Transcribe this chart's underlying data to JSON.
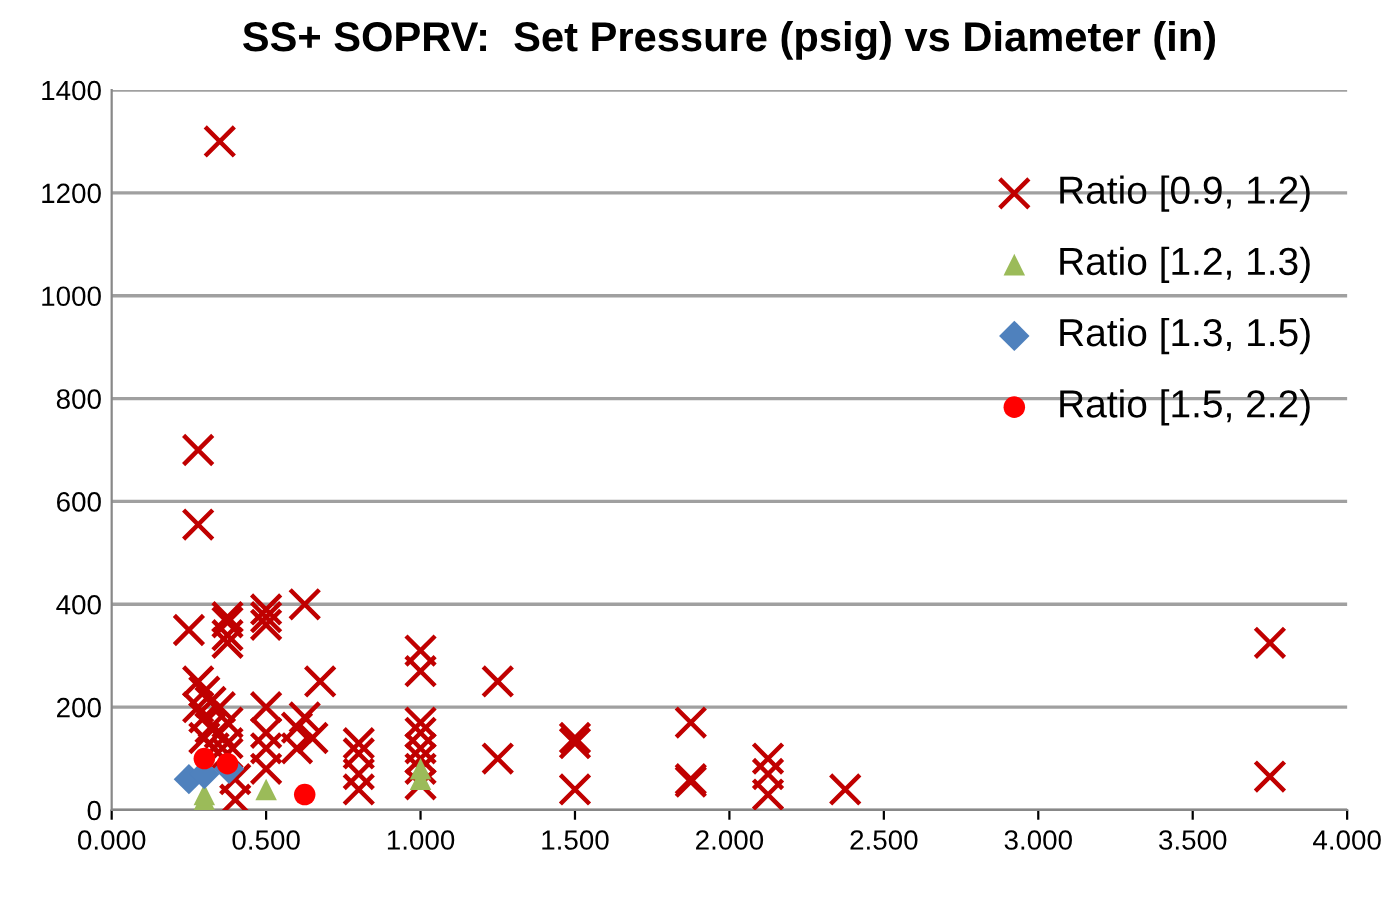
{
  "chart_data": {
    "type": "scatter",
    "title": "SS+ SOPRV:  Set Pressure (psig) vs Diameter (in)",
    "xlim": [
      0,
      4
    ],
    "xticks": [
      {
        "value": 0,
        "label": "0.000"
      },
      {
        "value": 0.5,
        "label": "0.500"
      },
      {
        "value": 1,
        "label": "1.000"
      },
      {
        "value": 1.5,
        "label": "1.500"
      },
      {
        "value": 2,
        "label": "2.000"
      },
      {
        "value": 2.5,
        "label": "2.500"
      },
      {
        "value": 3,
        "label": "3.000"
      },
      {
        "value": 3.5,
        "label": "3.500"
      },
      {
        "value": 4,
        "label": "4.000"
      }
    ],
    "ylim": [
      0,
      1400
    ],
    "yticks": [
      0,
      200,
      400,
      600,
      800,
      1000,
      1200,
      1400
    ],
    "grid": "y",
    "legend": "top right",
    "series": [
      {
        "name": "Ratio [0.9, 1.2)",
        "color": "#c00000",
        "marker": "cross",
        "x": [
          0.35,
          0.28,
          0.28,
          0.25,
          0.375,
          0.375,
          0.375,
          0.375,
          0.625,
          0.5,
          0.5,
          0.5,
          0.675,
          1.0,
          1.0,
          1.25,
          1.25,
          1.5,
          1.5,
          1.5,
          1.875,
          1.875,
          1.875,
          2.125,
          2.125,
          2.125,
          2.375,
          3.75,
          3.75,
          0.28,
          0.28,
          0.3,
          0.3,
          0.3,
          0.32,
          0.32,
          0.33,
          0.35,
          0.35,
          0.375,
          0.375,
          0.375,
          0.4,
          0.4,
          0.5,
          0.5,
          0.5,
          0.5,
          0.6,
          0.6,
          0.625,
          0.65,
          0.8,
          0.8,
          0.8,
          0.8,
          1.0,
          1.0,
          1.0,
          1.0,
          1.0,
          1.0
        ],
        "values": [
          1300,
          700,
          555,
          350,
          375,
          365,
          340,
          325,
          400,
          390,
          375,
          360,
          250,
          310,
          270,
          250,
          100,
          140,
          130,
          40,
          170,
          60,
          55,
          100,
          70,
          30,
          40,
          325,
          65,
          250,
          200,
          230,
          180,
          140,
          210,
          160,
          120,
          200,
          150,
          170,
          130,
          110,
          60,
          20,
          200,
          150,
          120,
          80,
          160,
          120,
          180,
          140,
          130,
          110,
          70,
          40,
          170,
          150,
          120,
          100,
          80,
          50
        ]
      },
      {
        "name": "Ratio [1.2, 1.3)",
        "color": "#9bbb59",
        "marker": "triangle",
        "x": [
          0.3,
          0.3,
          0.5,
          1.0,
          1.0
        ],
        "values": [
          20,
          30,
          40,
          60,
          80
        ]
      },
      {
        "name": "Ratio [1.3, 1.5)",
        "color": "#4f81bd",
        "marker": "diamond",
        "x": [
          0.25,
          0.3,
          0.38
        ],
        "values": [
          60,
          70,
          80
        ]
      },
      {
        "name": "Ratio [1.5, 2.2)",
        "color": "#ff0000",
        "marker": "circle",
        "x": [
          0.3,
          0.375,
          0.625
        ],
        "values": [
          100,
          90,
          30
        ]
      }
    ]
  }
}
